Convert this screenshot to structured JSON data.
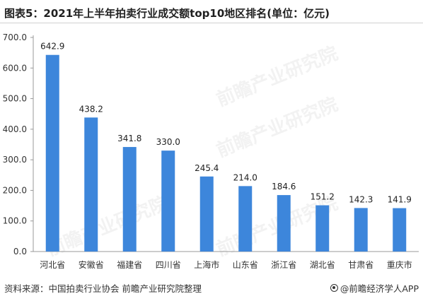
{
  "title": "图表5：2021年上半年拍卖行业成交额top10地区排名(单位：亿元)",
  "footer": {
    "source": "资料来源：中国拍卖行业协会 前瞻产业研究院整理",
    "brand": "@前瞻经济学人APP"
  },
  "watermark": "前瞻产业研究院",
  "colors": {
    "bar": "#3d86db",
    "grid": "#e6e6e6",
    "axis": "#999999"
  },
  "chart_data": {
    "type": "bar",
    "categories": [
      "河北省",
      "安徽省",
      "福建省",
      "四川省",
      "上海市",
      "山东省",
      "浙江省",
      "湖北省",
      "甘肃省",
      "重庆市"
    ],
    "values": [
      642.9,
      438.2,
      341.8,
      330.0,
      245.4,
      214.0,
      184.6,
      151.2,
      142.3,
      141.9
    ],
    "value_labels": [
      "642.9",
      "438.2",
      "341.8",
      "330.0",
      "245.4",
      "214.0",
      "184.6",
      "151.2",
      "142.3",
      "141.9"
    ],
    "yticks": [
      "0.0",
      "100.0",
      "200.0",
      "300.0",
      "400.0",
      "500.0",
      "600.0",
      "700.0"
    ],
    "ylim": [
      0,
      700
    ],
    "grid": false
  }
}
